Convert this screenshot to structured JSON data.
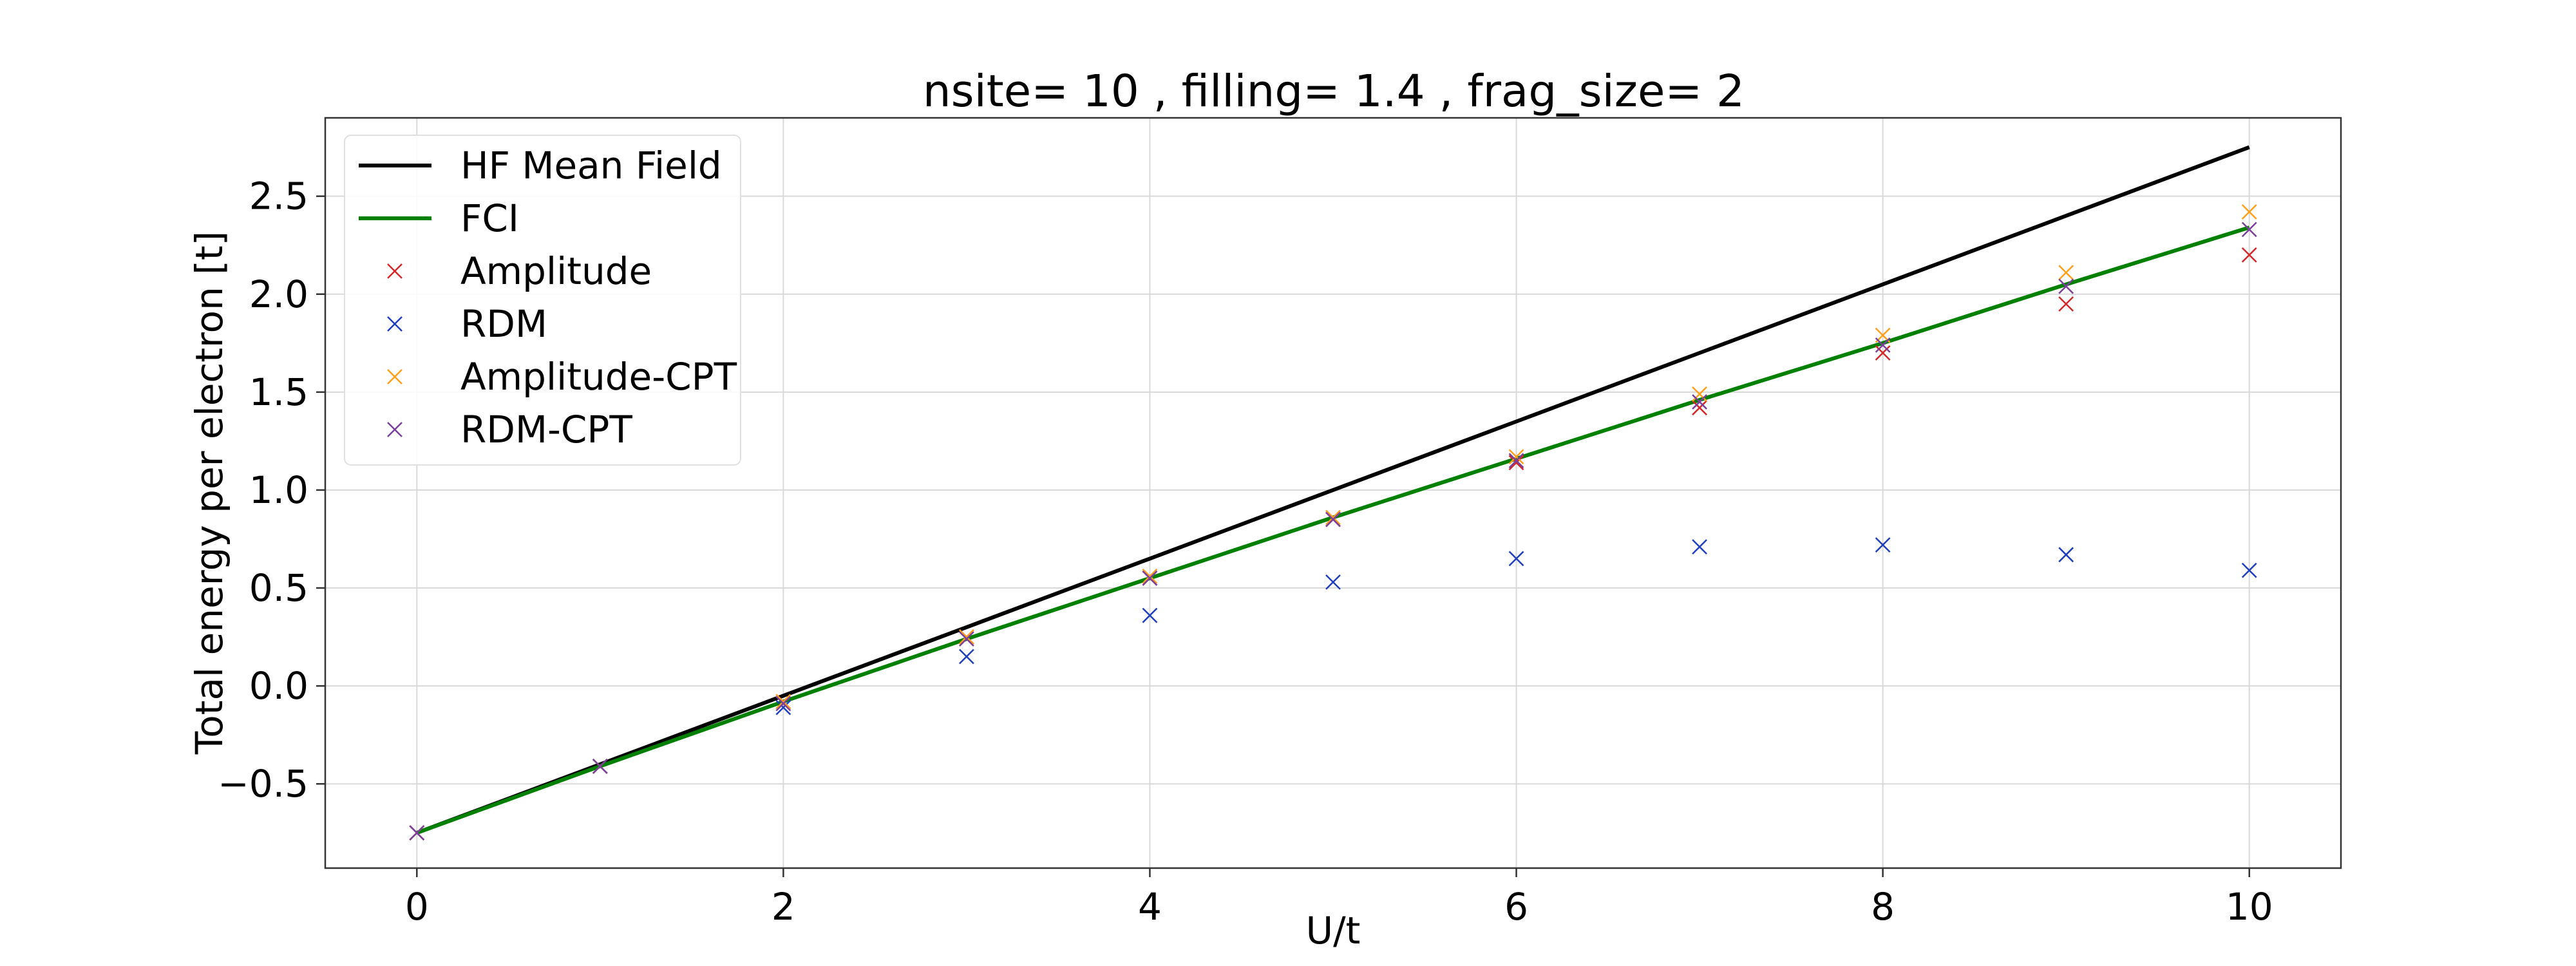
{
  "chart_data": {
    "type": "line",
    "title": "nsite= 10 , filling= 1.4 , frag_size= 2",
    "xlabel": "U/t",
    "ylabel": "Total energy per electron [t]",
    "xlim": [
      -0.5,
      10.5
    ],
    "ylim": [
      -0.93,
      2.9
    ],
    "grid": true,
    "legend_position": "top-left",
    "xticks": [
      0,
      2,
      4,
      6,
      8,
      10
    ],
    "yticks": [
      -0.5,
      0.0,
      0.5,
      1.0,
      1.5,
      2.0,
      2.5
    ],
    "ytick_labels": [
      "−0.5",
      "0.0",
      "0.5",
      "1.0",
      "1.5",
      "2.0",
      "2.5"
    ],
    "xtick_labels": [
      "0",
      "2",
      "4",
      "6",
      "8",
      "10"
    ],
    "x": [
      0,
      1,
      2,
      3,
      4,
      5,
      6,
      7,
      8,
      9,
      10
    ],
    "series": [
      {
        "name": "HF Mean Field",
        "kind": "line",
        "color": "#000000",
        "values": [
          -0.75,
          -0.4,
          -0.05,
          0.3,
          0.65,
          1.0,
          1.35,
          1.7,
          2.05,
          2.4,
          2.75
        ]
      },
      {
        "name": "FCI",
        "kind": "line",
        "color": "#008000",
        "values": [
          -0.75,
          -0.41,
          -0.08,
          0.24,
          0.55,
          0.86,
          1.16,
          1.46,
          1.75,
          2.05,
          2.34
        ]
      },
      {
        "name": "Amplitude",
        "kind": "marker",
        "color": "#d62728",
        "values": [
          -0.75,
          -0.41,
          -0.08,
          0.25,
          0.55,
          0.85,
          1.14,
          1.42,
          1.7,
          1.95,
          2.2
        ]
      },
      {
        "name": "RDM",
        "kind": "marker",
        "color": "#1f3fbf",
        "values": [
          -0.75,
          -0.41,
          -0.11,
          0.15,
          0.36,
          0.53,
          0.65,
          0.71,
          0.72,
          0.67,
          0.59
        ]
      },
      {
        "name": "Amplitude-CPT",
        "kind": "marker",
        "color": "#ff9f1c",
        "values": [
          -0.75,
          -0.41,
          -0.08,
          0.25,
          0.56,
          0.86,
          1.17,
          1.49,
          1.79,
          2.11,
          2.42
        ]
      },
      {
        "name": "RDM-CPT",
        "kind": "marker",
        "color": "#7b3f9e",
        "values": [
          -0.75,
          -0.41,
          -0.09,
          0.24,
          0.55,
          0.85,
          1.15,
          1.45,
          1.74,
          2.04,
          2.33
        ]
      }
    ]
  }
}
